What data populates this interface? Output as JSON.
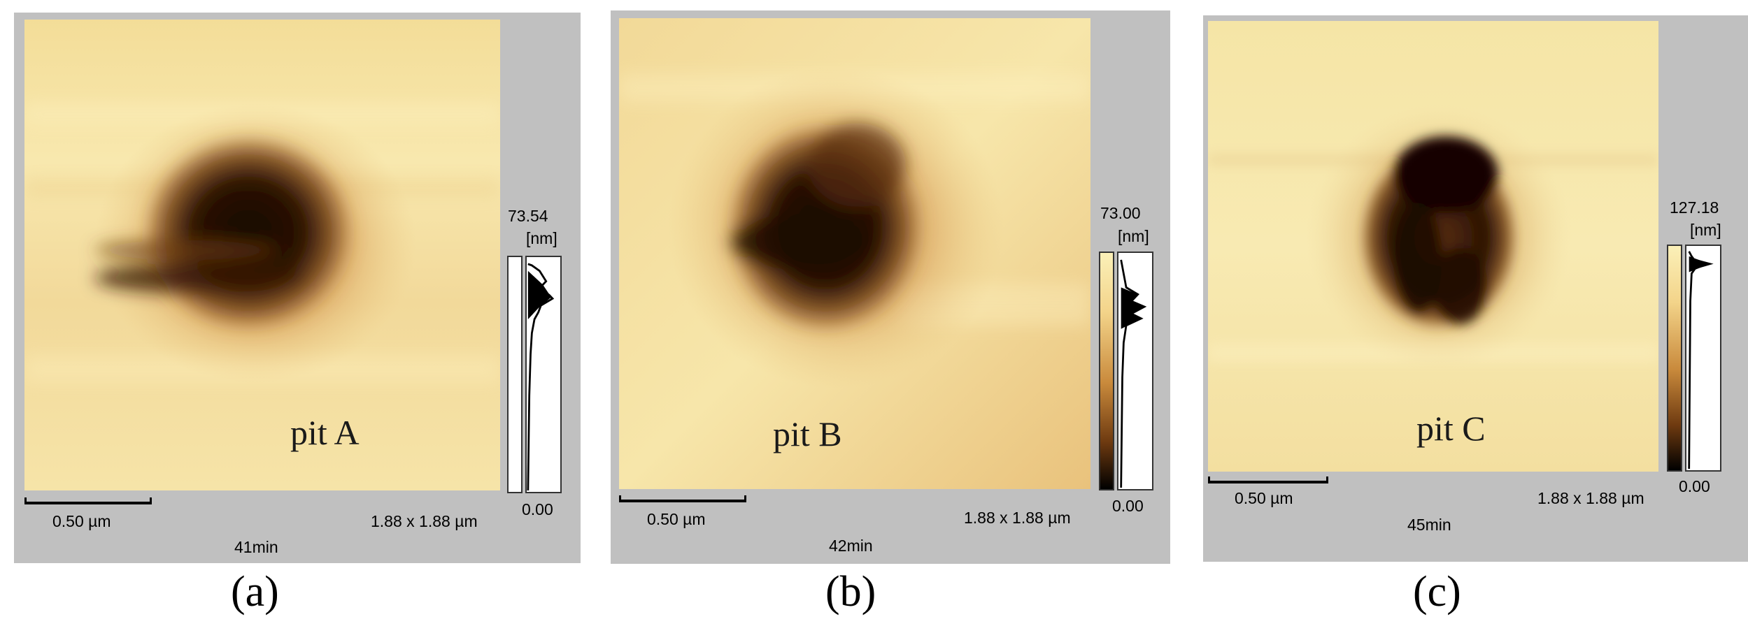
{
  "panels": [
    {
      "pit_label": "pit A",
      "scale_bar": "0.50 µm",
      "scan_size": "1.88 x 1.88 µm",
      "time": "41min",
      "color_max": "73.54",
      "unit": "[nm]",
      "color_min": "0.00",
      "caption": "(a)"
    },
    {
      "pit_label": "pit B",
      "scale_bar": "0.50 µm",
      "scan_size": "1.88 x 1.88 µm",
      "time": "42min",
      "color_max": "73.00",
      "unit": "[nm]",
      "color_min": "0.00",
      "caption": "(b)"
    },
    {
      "pit_label": "pit C",
      "scale_bar": "0.50 µm",
      "scan_size": "1.88 x 1.88 µm",
      "time": "45min",
      "color_max": "127.18",
      "unit": "[nm]",
      "color_min": "0.00",
      "caption": "(c)"
    }
  ],
  "colors": {
    "surface_light": "#f7e8a8",
    "surface_mid": "#d9a55a",
    "pit_dark": "#1a0a02",
    "panel_bg": "#c0c0c0"
  }
}
